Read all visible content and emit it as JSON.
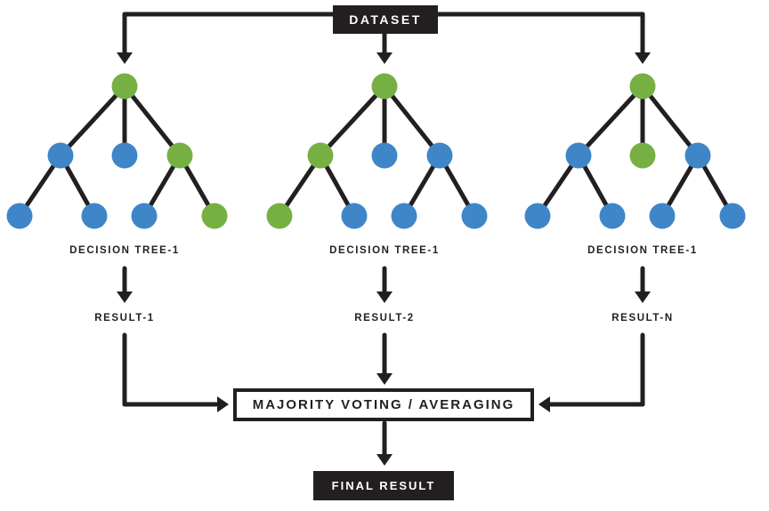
{
  "diagram": {
    "dataset_label": "DATASET",
    "voting_label": "MAJORITY VOTING / AVERAGING",
    "final_label": "FINAL RESULT",
    "trees": [
      {
        "label": "DECISION TREE-1",
        "result": "RESULT-1",
        "root": "green",
        "children": [
          "blue",
          "blue",
          "green"
        ],
        "leaves": [
          "blue",
          "blue",
          "blue",
          "green"
        ]
      },
      {
        "label": "DECISION TREE-1",
        "result": "RESULT-2",
        "root": "green",
        "children": [
          "green",
          "blue",
          "blue"
        ],
        "leaves": [
          "green",
          "blue",
          "blue",
          "blue"
        ]
      },
      {
        "label": "DECISION TREE-1",
        "result": "RESULT-N",
        "root": "green",
        "children": [
          "blue",
          "green",
          "blue"
        ],
        "leaves": [
          "blue",
          "blue",
          "blue",
          "blue"
        ]
      }
    ],
    "colors": {
      "green": "#76b043",
      "blue": "#3e86c8",
      "line": "#231f20"
    }
  }
}
